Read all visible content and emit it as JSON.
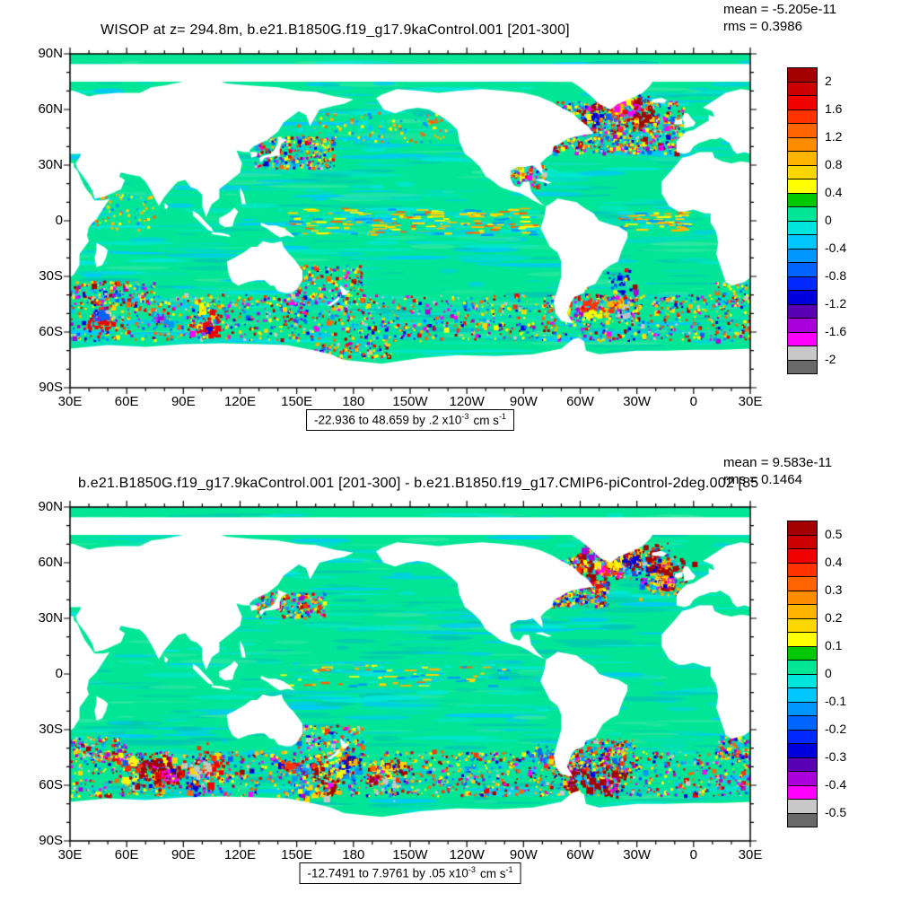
{
  "panels": [
    {
      "title": "WISOP at z= 294.8m, b.e21.B1850G.f19_g17.9kaControl.001 [201-300]",
      "mean": "mean = -5.205e-11",
      "rms": "rms = 0.3986",
      "range_label": {
        "base": "-22.936 to 48.659 by .2 x10",
        "exp": "-3",
        "unit": "cm s",
        "unit_exp": "-1"
      },
      "colorbar_labels": [
        "2",
        "1.6",
        "1.2",
        "0.8",
        "0.4",
        "0",
        "-0.4",
        "-0.8",
        "-1.2",
        "-1.6",
        "-2"
      ]
    },
    {
      "title": "b.e21.B1850G.f19_g17.9kaControl.001 [201-300] - b.e21.B1850.f19_g17.CMIP6-piControl-2deg.002 [85",
      "mean": "mean = 9.583e-11",
      "rms": "rms = 0.1464",
      "range_label": {
        "base": "-12.7491 to 7.9761 by .05 x10",
        "exp": "-3",
        "unit": "cm s",
        "unit_exp": "-1"
      },
      "colorbar_labels": [
        "0.5",
        "0.4",
        "0.3",
        "0.2",
        "0.1",
        "0",
        "-0.1",
        "-0.2",
        "-0.3",
        "-0.4",
        "-0.5"
      ]
    }
  ],
  "axes": {
    "lat_labels": [
      "90N",
      "60N",
      "30N",
      "0",
      "30S",
      "60S",
      "90S"
    ],
    "lon_labels": [
      "30E",
      "60E",
      "90E",
      "120E",
      "150E",
      "180",
      "150W",
      "120W",
      "90W",
      "60W",
      "30W",
      "0",
      "30E"
    ]
  },
  "colors": {
    "land": "#ffffff",
    "frame": "#000000",
    "ocean_base": "#00e696",
    "ocean_streaks": [
      "#00e6dc",
      "#00dcc8",
      "#2ce6a0",
      "#00c8b4",
      "#00e696",
      "#00c8ff"
    ],
    "speckle_full": [
      "#a50000",
      "#f00000",
      "#ff3200",
      "#ff6400",
      "#ffb400",
      "#ffff00",
      "#ffff00",
      "#ffd700",
      "#00c8ff",
      "#0096ff",
      "#0064ff",
      "#0000dc",
      "#ff00ff",
      "#aa00dc",
      "#c8c8c8"
    ],
    "speckle_mild": [
      "#ffff00",
      "#ffd700",
      "#ffb400",
      "#00c8ff",
      "#00e6dc",
      "#0096ff",
      "#ff6400"
    ],
    "colorbar": [
      "#a50000",
      "#cd0000",
      "#f00000",
      "#ff3200",
      "#ff6400",
      "#ff8c00",
      "#ffb400",
      "#ffd700",
      "#ffff00",
      "#00c800",
      "#00e696",
      "#00e6dc",
      "#00c8ff",
      "#0096ff",
      "#0064ff",
      "#0028ff",
      "#0000dc",
      "#5a00b4",
      "#aa00dc",
      "#ff00ff",
      "#c8c8c8",
      "#696969"
    ]
  },
  "chart_data": [
    {
      "type": "heatmap",
      "title": "WISOP at z= 294.8m, b.e21.B1850G.f19_g17.9kaControl.001 [201-300]",
      "stats": {
        "mean": -5.205e-11,
        "rms": 0.3986
      },
      "data_range": {
        "min": -22.936,
        "max": 48.659,
        "contour_interval": 0.2,
        "units": "x10-3 cm s-1"
      },
      "colorbar_ticks": [
        2,
        1.6,
        1.2,
        0.8,
        0.4,
        0,
        -0.4,
        -0.8,
        -1.2,
        -1.6,
        -2
      ],
      "x_tick_labels": [
        "30E",
        "60E",
        "90E",
        "120E",
        "150E",
        "180",
        "150W",
        "120W",
        "90W",
        "60W",
        "30W",
        "0",
        "30E"
      ],
      "y_tick_labels": [
        "90N",
        "60N",
        "30N",
        "0",
        "30S",
        "60S",
        "90S"
      ],
      "legend_position": "right",
      "grid": false
    },
    {
      "type": "heatmap",
      "title": "b.e21.B1850G.f19_g17.9kaControl.001 [201-300] - b.e21.B1850.f19_g17.CMIP6-piControl-2deg.002 [85",
      "stats": {
        "mean": 9.583e-11,
        "rms": 0.1464
      },
      "data_range": {
        "min": -12.7491,
        "max": 7.9761,
        "contour_interval": 0.05,
        "units": "x10-3 cm s-1"
      },
      "colorbar_ticks": [
        0.5,
        0.4,
        0.3,
        0.2,
        0.1,
        0,
        -0.1,
        -0.2,
        -0.3,
        -0.4,
        -0.5
      ],
      "x_tick_labels": [
        "30E",
        "60E",
        "90E",
        "120E",
        "150E",
        "180",
        "150W",
        "120W",
        "90W",
        "60W",
        "30W",
        "0",
        "30E"
      ],
      "y_tick_labels": [
        "90N",
        "60N",
        "30N",
        "0",
        "30S",
        "60S",
        "90S"
      ],
      "legend_position": "right",
      "grid": false
    }
  ]
}
